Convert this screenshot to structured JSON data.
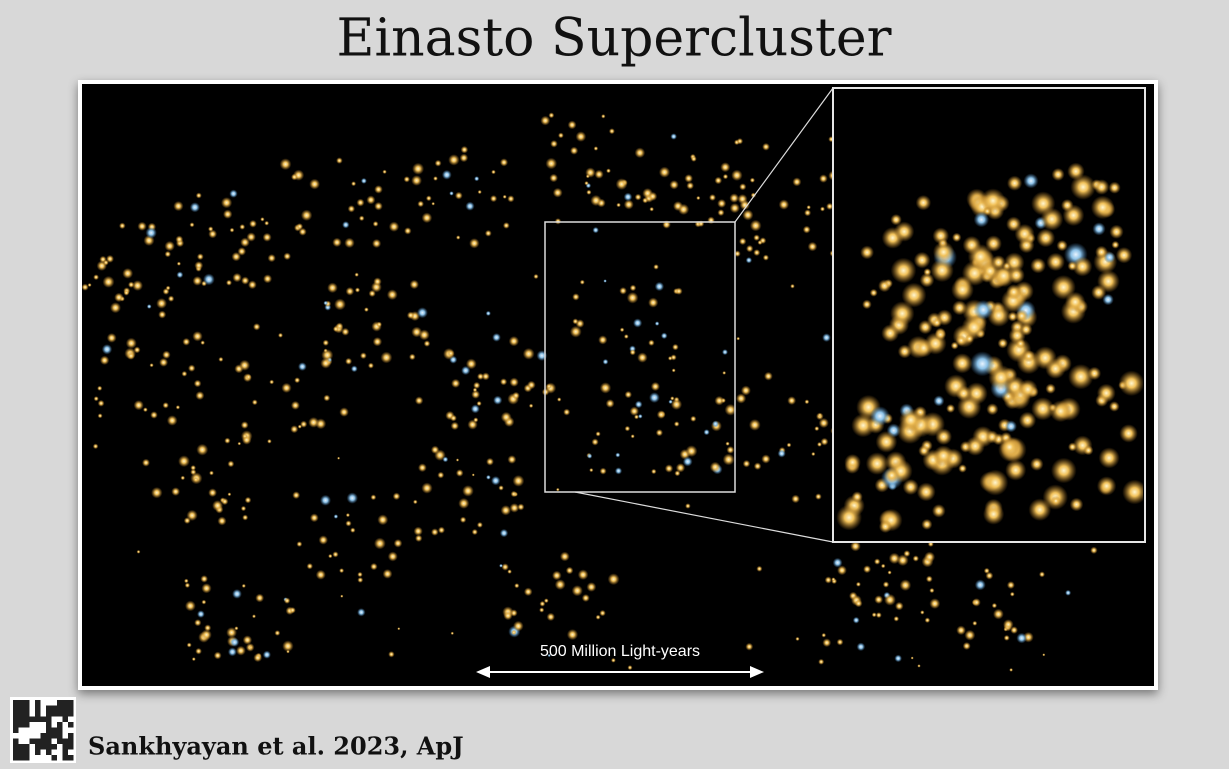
{
  "header": {
    "title": "Einasto Supercluster"
  },
  "image": {
    "scale_label": "500 Million Light-years"
  },
  "footer": {
    "citation": "Sankhyayan et al. 2023, ApJ"
  }
}
